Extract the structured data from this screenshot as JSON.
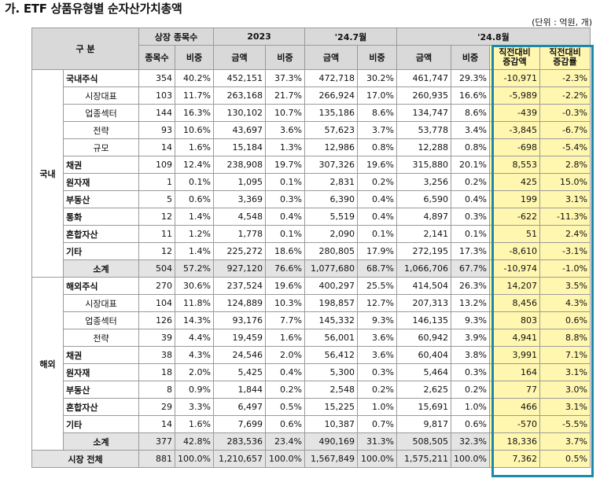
{
  "title": "가. ETF 상품유형별 순자산가치총액",
  "unit": "(단위 : 억원, 개)",
  "header": {
    "category": "구 분",
    "listing": "상장 종목수",
    "y2023": "2023",
    "jul24": "'24.7월",
    "aug24": "'24.8월",
    "count": "종목수",
    "share": "비중",
    "amount": "금액",
    "change_amount": "직전대비\n증감액",
    "change_rate": "직전대비\n증감률"
  },
  "regions": {
    "domestic": "국내",
    "overseas": "해외"
  },
  "rows": [
    {
      "label": "국내주식",
      "type": "main",
      "v": [
        "354",
        "40.2%",
        "452,151",
        "37.3%",
        "472,718",
        "30.2%",
        "461,747",
        "29.3%",
        "-10,971",
        "-2.3%"
      ]
    },
    {
      "label": "시장대표",
      "type": "sub",
      "v": [
        "103",
        "11.7%",
        "263,168",
        "21.7%",
        "266,924",
        "17.0%",
        "260,935",
        "16.6%",
        "-5,989",
        "-2.2%"
      ]
    },
    {
      "label": "업종섹터",
      "type": "sub",
      "v": [
        "144",
        "16.3%",
        "130,102",
        "10.7%",
        "135,186",
        "8.6%",
        "134,747",
        "8.6%",
        "-439",
        "-0.3%"
      ]
    },
    {
      "label": "전략",
      "type": "sub",
      "v": [
        "93",
        "10.6%",
        "43,697",
        "3.6%",
        "57,623",
        "3.7%",
        "53,778",
        "3.4%",
        "-3,845",
        "-6.7%"
      ]
    },
    {
      "label": "규모",
      "type": "sub",
      "v": [
        "14",
        "1.6%",
        "15,184",
        "1.3%",
        "12,986",
        "0.8%",
        "12,288",
        "0.8%",
        "-698",
        "-5.4%"
      ]
    },
    {
      "label": "채권",
      "type": "main",
      "v": [
        "109",
        "12.4%",
        "238,908",
        "19.7%",
        "307,326",
        "19.6%",
        "315,880",
        "20.1%",
        "8,553",
        "2.8%"
      ]
    },
    {
      "label": "원자재",
      "type": "main",
      "v": [
        "1",
        "0.1%",
        "1,095",
        "0.1%",
        "2,831",
        "0.2%",
        "3,256",
        "0.2%",
        "425",
        "15.0%"
      ]
    },
    {
      "label": "부동산",
      "type": "main",
      "v": [
        "5",
        "0.6%",
        "3,369",
        "0.3%",
        "6,390",
        "0.4%",
        "6,590",
        "0.4%",
        "199",
        "3.1%"
      ]
    },
    {
      "label": "통화",
      "type": "main",
      "v": [
        "12",
        "1.4%",
        "4,548",
        "0.4%",
        "5,519",
        "0.4%",
        "4,897",
        "0.3%",
        "-622",
        "-11.3%"
      ]
    },
    {
      "label": "혼합자산",
      "type": "main",
      "v": [
        "11",
        "1.2%",
        "1,778",
        "0.1%",
        "2,090",
        "0.1%",
        "2,141",
        "0.1%",
        "51",
        "2.4%"
      ]
    },
    {
      "label": "기타",
      "type": "main",
      "v": [
        "12",
        "1.4%",
        "225,272",
        "18.6%",
        "280,805",
        "17.9%",
        "272,195",
        "17.3%",
        "-8,610",
        "-3.1%"
      ]
    },
    {
      "label": "소계",
      "type": "total",
      "v": [
        "504",
        "57.2%",
        "927,120",
        "76.6%",
        "1,077,680",
        "68.7%",
        "1,066,706",
        "67.7%",
        "-10,974",
        "-1.0%"
      ]
    },
    {
      "label": "해외주식",
      "type": "main",
      "v": [
        "270",
        "30.6%",
        "237,524",
        "19.6%",
        "400,297",
        "25.5%",
        "414,504",
        "26.3%",
        "14,207",
        "3.5%"
      ]
    },
    {
      "label": "시장대표",
      "type": "sub",
      "v": [
        "104",
        "11.8%",
        "124,889",
        "10.3%",
        "198,857",
        "12.7%",
        "207,313",
        "13.2%",
        "8,456",
        "4.3%"
      ]
    },
    {
      "label": "업종섹터",
      "type": "sub",
      "v": [
        "126",
        "14.3%",
        "93,176",
        "7.7%",
        "145,332",
        "9.3%",
        "146,135",
        "9.3%",
        "803",
        "0.6%"
      ]
    },
    {
      "label": "전략",
      "type": "sub",
      "v": [
        "39",
        "4.4%",
        "19,459",
        "1.6%",
        "56,001",
        "3.6%",
        "60,942",
        "3.9%",
        "4,941",
        "8.8%"
      ]
    },
    {
      "label": "채권",
      "type": "main",
      "v": [
        "38",
        "4.3%",
        "24,546",
        "2.0%",
        "56,412",
        "3.6%",
        "60,404",
        "3.8%",
        "3,991",
        "7.1%"
      ]
    },
    {
      "label": "원자재",
      "type": "main",
      "v": [
        "18",
        "2.0%",
        "5,425",
        "0.4%",
        "5,300",
        "0.3%",
        "5,464",
        "0.3%",
        "164",
        "3.1%"
      ]
    },
    {
      "label": "부동산",
      "type": "main",
      "v": [
        "8",
        "0.9%",
        "1,844",
        "0.2%",
        "2,548",
        "0.2%",
        "2,625",
        "0.2%",
        "77",
        "3.0%"
      ]
    },
    {
      "label": "혼합자산",
      "type": "main",
      "v": [
        "29",
        "3.3%",
        "6,497",
        "0.5%",
        "15,225",
        "1.0%",
        "15,691",
        "1.0%",
        "466",
        "3.1%"
      ]
    },
    {
      "label": "기타",
      "type": "main",
      "v": [
        "14",
        "1.6%",
        "7,699",
        "0.6%",
        "10,387",
        "0.7%",
        "9,817",
        "0.6%",
        "-570",
        "-5.5%"
      ]
    },
    {
      "label": "소계",
      "type": "total",
      "v": [
        "377",
        "42.8%",
        "283,536",
        "23.4%",
        "490,169",
        "31.3%",
        "508,505",
        "32.3%",
        "18,336",
        "3.7%"
      ]
    }
  ],
  "grand_total": {
    "label": "시장 전체",
    "v": [
      "881",
      "100.0%",
      "1,210,657",
      "100.0%",
      "1,567,849",
      "100.0%",
      "1,575,211",
      "100.0%",
      "7,362",
      "0.5%"
    ]
  },
  "colors": {
    "header_bg": "#d9d9d9",
    "highlight_bg": "#fff7b0",
    "highlight_border": "#1a8aa8",
    "subtotal_bg": "#e4e4e4"
  }
}
